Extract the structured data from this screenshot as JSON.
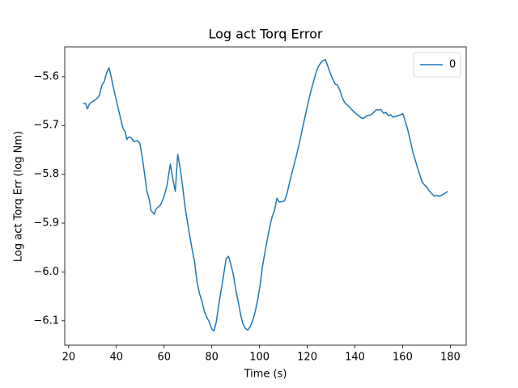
{
  "chart_data": {
    "type": "line",
    "title": "Log act Torq Error",
    "x_label": "Time (s)",
    "y_label": "Log act Torq Err (log Nm)",
    "x": [
      26,
      27.1,
      27.8,
      28.8,
      31.8,
      32.9,
      33.9,
      34.9,
      35.9,
      36.9,
      37.9,
      39,
      41,
      42.7,
      43.7,
      44.4,
      45,
      46,
      47.4,
      48.8,
      49.8,
      50.8,
      51.8,
      52.8,
      53.8,
      54.5,
      55.9,
      56.5,
      58.6,
      60,
      61.3,
      62.6,
      63.7,
      64.7,
      65.7,
      66.7,
      67.7,
      68.7,
      69.7,
      70.8,
      71.8,
      72.8,
      73.8,
      74.8,
      75.8,
      76.9,
      77.9,
      78.9,
      79.9,
      80.9,
      81.9,
      82.9,
      84,
      85,
      86,
      87,
      88,
      89,
      90,
      91,
      92.1,
      93.1,
      94.1,
      95.1,
      96.1,
      97.2,
      98.2,
      99.2,
      100.2,
      101.2,
      102.2,
      103.2,
      104.3,
      105.3,
      106.3,
      107.3,
      108.3,
      110.4,
      111.4,
      112.4,
      113.4,
      114.4,
      115.4,
      116.4,
      117.5,
      118.5,
      119.5,
      120.5,
      121.5,
      122.5,
      123.6,
      124.6,
      125.6,
      126.6,
      127.6,
      128.6,
      129.6,
      130.7,
      131.7,
      132.7,
      133.7,
      134.7,
      135.7,
      137.8,
      139.8,
      141.8,
      142.8,
      143.9,
      144.9,
      146.9,
      148.9,
      151,
      152,
      153,
      154,
      155,
      156,
      158.1,
      160.1,
      161.1,
      162.1,
      163.1,
      164.2,
      166.2,
      168.2,
      169.2,
      170.3,
      171.3,
      172.3,
      173.3,
      174.3,
      175.3,
      176.3,
      177.4,
      179
    ],
    "series": [
      {
        "name": "0",
        "color": "#1f77b4",
        "values": [
          -5.655,
          -5.655,
          -5.666,
          -5.655,
          -5.645,
          -5.638,
          -5.618,
          -5.61,
          -5.592,
          -5.582,
          -5.602,
          -5.628,
          -5.67,
          -5.705,
          -5.713,
          -5.729,
          -5.724,
          -5.724,
          -5.733,
          -5.731,
          -5.736,
          -5.763,
          -5.799,
          -5.835,
          -5.852,
          -5.874,
          -5.882,
          -5.872,
          -5.862,
          -5.845,
          -5.821,
          -5.779,
          -5.811,
          -5.835,
          -5.759,
          -5.786,
          -5.822,
          -5.864,
          -5.895,
          -5.927,
          -5.955,
          -5.98,
          -6.02,
          -6.044,
          -6.059,
          -6.081,
          -6.093,
          -6.102,
          -6.116,
          -6.121,
          -6.102,
          -6.068,
          -6.035,
          -6.005,
          -5.973,
          -5.968,
          -5.985,
          -6.005,
          -6.035,
          -6.059,
          -6.088,
          -6.107,
          -6.116,
          -6.119,
          -6.112,
          -6.099,
          -6.081,
          -6.058,
          -6.028,
          -5.99,
          -5.962,
          -5.935,
          -5.907,
          -5.887,
          -5.874,
          -5.849,
          -5.857,
          -5.855,
          -5.842,
          -5.821,
          -5.801,
          -5.782,
          -5.763,
          -5.743,
          -5.718,
          -5.695,
          -5.673,
          -5.651,
          -5.63,
          -5.613,
          -5.593,
          -5.58,
          -5.572,
          -5.567,
          -5.565,
          -5.578,
          -5.592,
          -5.605,
          -5.615,
          -5.617,
          -5.628,
          -5.643,
          -5.653,
          -5.663,
          -5.673,
          -5.681,
          -5.685,
          -5.685,
          -5.68,
          -5.678,
          -5.668,
          -5.668,
          -5.675,
          -5.673,
          -5.68,
          -5.678,
          -5.683,
          -5.68,
          -5.676,
          -5.691,
          -5.708,
          -5.728,
          -5.753,
          -5.786,
          -5.816,
          -5.822,
          -5.827,
          -5.835,
          -5.84,
          -5.845,
          -5.843,
          -5.845,
          -5.843,
          -5.84,
          -5.835
        ]
      }
    ],
    "xlim": [
      18.35,
      186.65
    ],
    "ylim": [
      -6.15,
      -5.539
    ],
    "xticks": [
      20,
      40,
      60,
      80,
      100,
      120,
      140,
      160,
      180
    ],
    "yticks": [
      {
        "value": -5.6,
        "label": "−5.6"
      },
      {
        "value": -5.7,
        "label": "−5.7"
      },
      {
        "value": -5.8,
        "label": "−5.8"
      },
      {
        "value": -5.9,
        "label": "−5.9"
      },
      {
        "value": -6.0,
        "label": "−6.0"
      },
      {
        "value": -6.1,
        "label": "−6.1"
      }
    ],
    "legend": "upper right"
  }
}
